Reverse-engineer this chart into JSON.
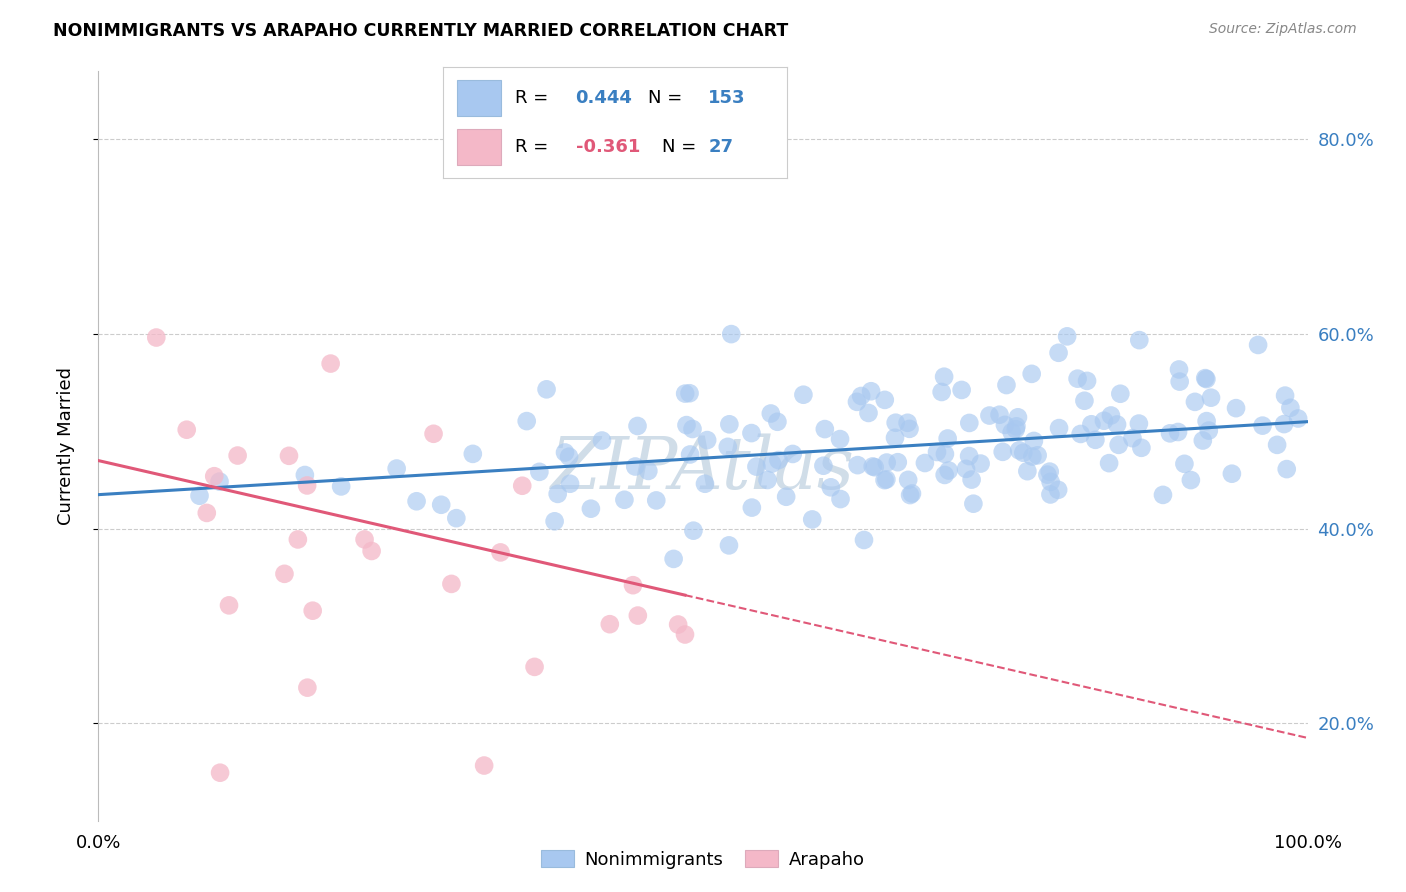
{
  "title": "NONIMMIGRANTS VS ARAPAHO CURRENTLY MARRIED CORRELATION CHART",
  "source": "Source: ZipAtlas.com",
  "ylabel": "Currently Married",
  "y_ticks": [
    0.2,
    0.4,
    0.6,
    0.8
  ],
  "y_tick_labels": [
    "20.0%",
    "40.0%",
    "60.0%",
    "80.0%"
  ],
  "xlim": [
    0.0,
    1.0
  ],
  "ylim": [
    0.1,
    0.87
  ],
  "legend_R1": "0.444",
  "legend_N1": "153",
  "legend_R2": "-0.361",
  "legend_N2": "27",
  "legend_color1": "#a8c8f0",
  "legend_color2": "#f4b8c8",
  "blue_color": "#a8c8f0",
  "pink_color": "#f4b8c8",
  "blue_line_color": "#3a7fc1",
  "pink_line_color": "#e05878",
  "blue_trend_y_start": 0.435,
  "blue_trend_y_end": 0.51,
  "pink_trend_y_start": 0.47,
  "pink_trend_y_end": 0.185,
  "background_color": "#ffffff",
  "grid_color": "#cccccc",
  "watermark_text": "ZIPAtlas",
  "watermark_color": "#d0dde8",
  "legend_labels": [
    "Nonimmigrants",
    "Arapaho"
  ],
  "blue_seed": 77,
  "pink_seed": 42,
  "N_blue": 153,
  "N_pink": 27
}
